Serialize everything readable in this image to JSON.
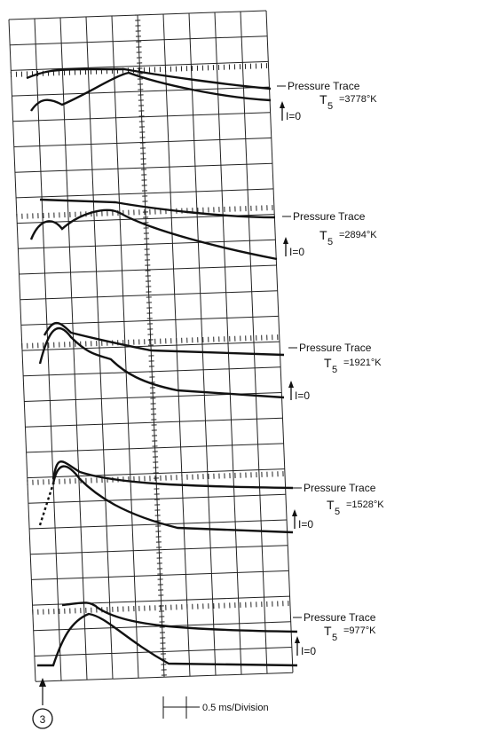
{
  "traces": [
    {
      "label": "Pressure Trace",
      "t": "T",
      "sub": "5",
      "temp": "=3778°K",
      "zero": "I=0"
    },
    {
      "label": "Pressure Trace",
      "t": "T",
      "sub": "5",
      "temp": "=2894°K",
      "zero": "I=0"
    },
    {
      "label": "Pressure Trace",
      "t": "T",
      "sub": "5",
      "temp": "=1921°K",
      "zero": "I=0"
    },
    {
      "label": "Pressure Trace",
      "t": "T",
      "sub": "5",
      "temp": "=1528°K",
      "zero": "I=0"
    },
    {
      "label": "Pressure Trace",
      "t": "T",
      "sub": "5",
      "temp": "=977°K",
      "zero": "I=0"
    }
  ],
  "scale": "0.5 ms/Division",
  "marker": "3"
}
